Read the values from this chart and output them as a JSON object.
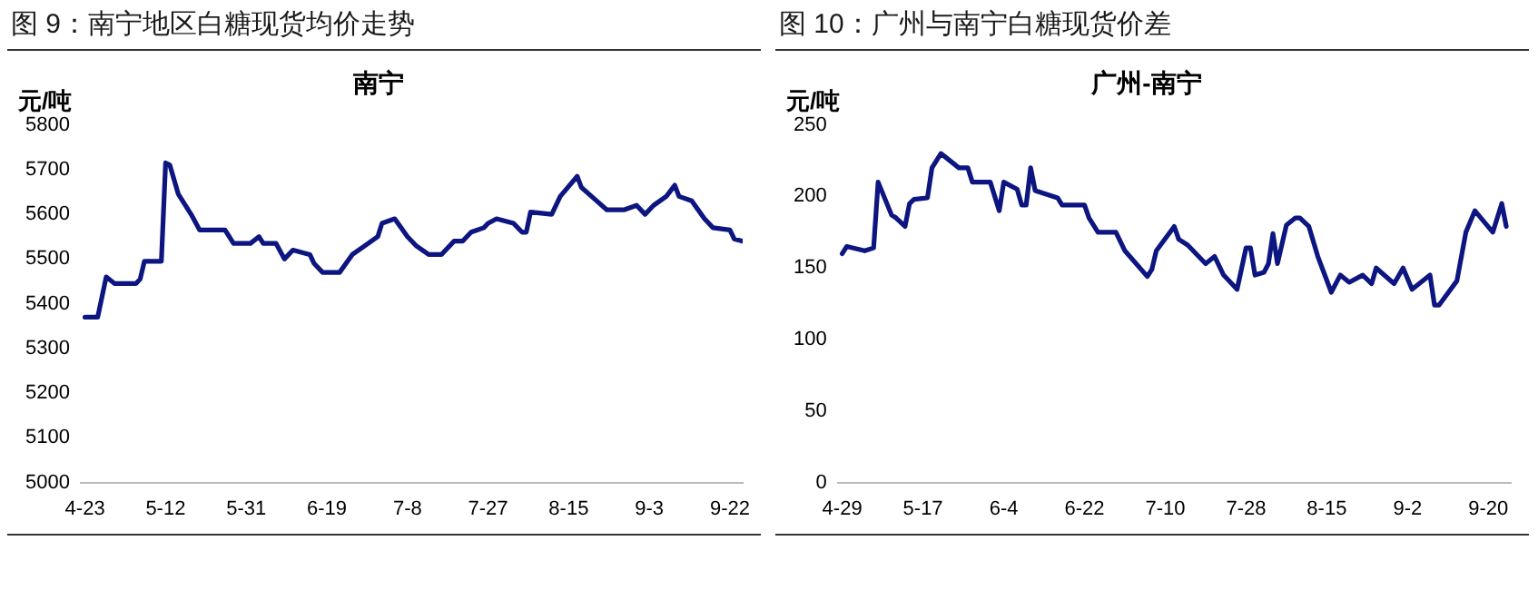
{
  "chart_data": [
    {
      "type": "line",
      "title": "图 9：南宁地区白糖现货均价走势",
      "subtitle": "南宁",
      "ylabel": "元/吨",
      "marker": "none",
      "line_style": "solid",
      "x": [
        "--04-23",
        "--04-26",
        "--04-28",
        "--04-30",
        "--05-05",
        "--05-06",
        "--05-07",
        "--05-11",
        "--05-12",
        "--05-13",
        "--05-15",
        "--05-18",
        "--05-20",
        "--05-26",
        "--05-28",
        "--06-01",
        "--06-03",
        "--06-04",
        "--06-07",
        "--06-09",
        "--06-11",
        "--06-15",
        "--06-16",
        "--06-18",
        "--06-22",
        "--06-25",
        "--06-28",
        "--07-01",
        "--07-02",
        "--07-05",
        "--07-08",
        "--07-10",
        "--07-13",
        "--07-16",
        "--07-19",
        "--07-21",
        "--07-23",
        "--07-26",
        "--07-27",
        "--07-29",
        "--08-02",
        "--08-04",
        "--08-05",
        "--08-06",
        "--08-11",
        "--08-13",
        "--08-17",
        "--08-18",
        "--08-21",
        "--08-24",
        "--08-28",
        "--08-31",
        "--09-02",
        "--09-04",
        "--09-07",
        "--09-09",
        "--09-10",
        "--09-13",
        "--09-16",
        "--09-18",
        "--09-22",
        "--09-23",
        "--09-25"
      ],
      "series": [
        {
          "color": "#0d1580",
          "values": [
            5370,
            5370,
            5460,
            5445,
            5445,
            5455,
            5495,
            5495,
            5715,
            5710,
            5645,
            5600,
            5565,
            5565,
            5535,
            5535,
            5550,
            5535,
            5535,
            5500,
            5520,
            5510,
            5490,
            5470,
            5470,
            5510,
            5530,
            5550,
            5580,
            5590,
            5550,
            5530,
            5510,
            5510,
            5540,
            5540,
            5560,
            5570,
            5580,
            5590,
            5580,
            5560,
            5560,
            5605,
            5600,
            5640,
            5685,
            5660,
            5635,
            5610,
            5610,
            5620,
            5600,
            5620,
            5640,
            5665,
            5640,
            5630,
            5590,
            5570,
            5565,
            5545,
            5540
          ]
        }
      ],
      "xlim": [
        "--04-22",
        "--09-25"
      ],
      "xticks": [
        {
          "value": "--04-23",
          "label": "4-23"
        },
        {
          "value": "--05-12",
          "label": "5-12"
        },
        {
          "value": "--05-31",
          "label": "5-31"
        },
        {
          "value": "--06-19",
          "label": "6-19"
        },
        {
          "value": "--07-08",
          "label": "7-8"
        },
        {
          "value": "--07-27",
          "label": "7-27"
        },
        {
          "value": "--08-15",
          "label": "8-15"
        },
        {
          "value": "--09-03",
          "label": "9-3"
        },
        {
          "value": "--09-22",
          "label": "9-22"
        }
      ],
      "ylim": [
        5000,
        5800
      ],
      "yticks": [
        5000,
        5100,
        5200,
        5300,
        5400,
        5500,
        5600,
        5700,
        5800
      ]
    },
    {
      "type": "line",
      "title": "图 10：广州与南宁白糖现货价差",
      "subtitle": "广州-南宁",
      "ylabel": "元/吨",
      "marker": "none",
      "line_style": "solid",
      "x": [
        "--04-29",
        "--04-30",
        "--05-04",
        "--05-06",
        "--05-07",
        "--05-10",
        "--05-11",
        "--05-13",
        "--05-14",
        "--05-15",
        "--05-18",
        "--05-19",
        "--05-21",
        "--05-25",
        "--05-27",
        "--05-28",
        "--06-01",
        "--06-03",
        "--06-04",
        "--06-07",
        "--06-08",
        "--06-09",
        "--06-10",
        "--06-11",
        "--06-16",
        "--06-17",
        "--06-22",
        "--06-23",
        "--06-25",
        "--06-29",
        "--07-01",
        "--07-06",
        "--07-07",
        "--07-08",
        "--07-12",
        "--07-13",
        "--07-15",
        "--07-19",
        "--07-21",
        "--07-23",
        "--07-26",
        "--07-28",
        "--07-29",
        "--07-30",
        "--08-01",
        "--08-02",
        "--08-03",
        "--08-04",
        "--08-06",
        "--08-08",
        "--08-09",
        "--08-11",
        "--08-13",
        "--08-16",
        "--08-18",
        "--08-20",
        "--08-23",
        "--08-25",
        "--08-26",
        "--08-30",
        "--09-01",
        "--09-03",
        "--09-07",
        "--09-08",
        "--09-09",
        "--09-13",
        "--09-15",
        "--09-17",
        "--09-21",
        "--09-23",
        "--09-24"
      ],
      "series": [
        {
          "color": "#0d1580",
          "values": [
            160,
            165,
            162,
            164,
            210,
            187,
            185,
            179,
            195,
            198,
            199,
            220,
            230,
            220,
            220,
            210,
            210,
            190,
            210,
            205,
            194,
            194,
            220,
            204,
            199,
            194,
            194,
            185,
            175,
            175,
            162,
            144,
            149,
            162,
            179,
            170,
            166,
            153,
            158,
            145,
            135,
            164,
            164,
            145,
            147,
            153,
            174,
            153,
            180,
            185,
            185,
            179,
            158,
            133,
            145,
            140,
            145,
            139,
            150,
            139,
            150,
            135,
            145,
            124,
            124,
            141,
            175,
            190,
            175,
            195,
            179
          ]
        }
      ],
      "xlim": [
        "--04-28",
        "--09-25"
      ],
      "xticks": [
        {
          "value": "--04-29",
          "label": "4-29"
        },
        {
          "value": "--05-17",
          "label": "5-17"
        },
        {
          "value": "--06-04",
          "label": "6-4"
        },
        {
          "value": "--06-22",
          "label": "6-22"
        },
        {
          "value": "--07-10",
          "label": "7-10"
        },
        {
          "value": "--07-28",
          "label": "7-28"
        },
        {
          "value": "--08-15",
          "label": "8-15"
        },
        {
          "value": "--09-02",
          "label": "9-2"
        },
        {
          "value": "--09-20",
          "label": "9-20"
        }
      ],
      "ylim": [
        0,
        250
      ],
      "yticks": [
        0,
        50,
        100,
        150,
        200,
        250
      ]
    }
  ]
}
